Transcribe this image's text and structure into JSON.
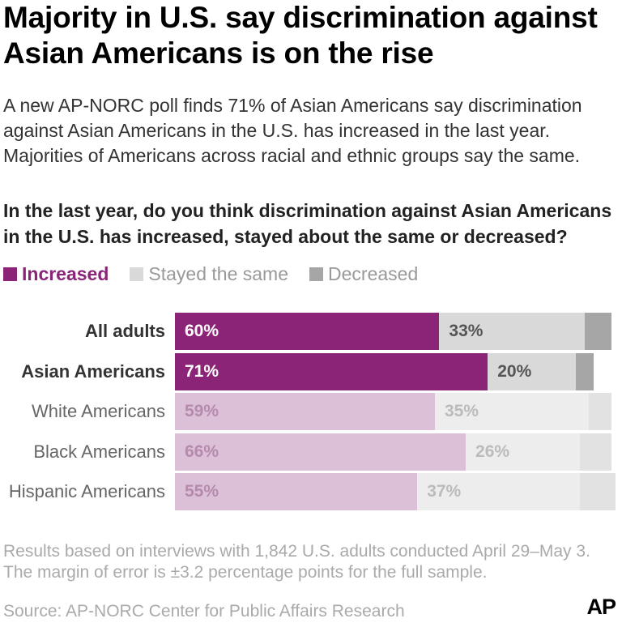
{
  "title": "Majority in U.S. say discrimination against Asian Americans is on the rise",
  "subtitle": "A new AP-NORC poll finds 71% of Asian Americans say discrimination against Asian Americans in the U.S. has increased in the last year. Majorities of Americans across racial and ethnic groups say the same.",
  "question": "In the last year, do you think discrimination against Asian Americans in the U.S. has increased, stayed about the same or decreased?",
  "legend": [
    {
      "label": "Increased",
      "color": "#8b2477"
    },
    {
      "label": "Stayed the same",
      "color": "#d9d9d9"
    },
    {
      "label": "Decreased",
      "color": "#a6a6a6"
    }
  ],
  "note": "Results based on interviews with 1,842 U.S. adults conducted April 29–May 3. The margin of error is ±3.2 percentage points for the full sample.",
  "source": "Source: AP-NORC Center for Public Affairs Research",
  "logo": "AP",
  "chart_data": {
    "type": "bar",
    "orientation": "horizontal",
    "stacked": true,
    "categories": [
      "All adults",
      "Asian Americans",
      "White Americans",
      "Black Americans",
      "Hispanic Americans"
    ],
    "highlighted": [
      "All adults",
      "Asian Americans"
    ],
    "series": [
      {
        "name": "Increased",
        "values": [
          60,
          71,
          59,
          66,
          55
        ],
        "labels": [
          "60%",
          "71%",
          "59%",
          "66%",
          "55%"
        ]
      },
      {
        "name": "Stayed the same",
        "values": [
          33,
          20,
          35,
          26,
          37
        ],
        "labels": [
          "33%",
          "20%",
          "35%",
          "26%",
          "37%"
        ]
      },
      {
        "name": "Decreased",
        "values": [
          6,
          4,
          5,
          7,
          8
        ],
        "labels": [
          "",
          "",
          "",
          "",
          ""
        ]
      }
    ],
    "xlim": [
      0,
      100
    ],
    "colors": {
      "increased": "#8b2477",
      "increased_muted": "#dcc0d8",
      "same": "#d9d9d9",
      "same_muted": "#ededed",
      "decreased": "#a6a6a6",
      "decreased_muted": "#e2e2e2"
    }
  }
}
